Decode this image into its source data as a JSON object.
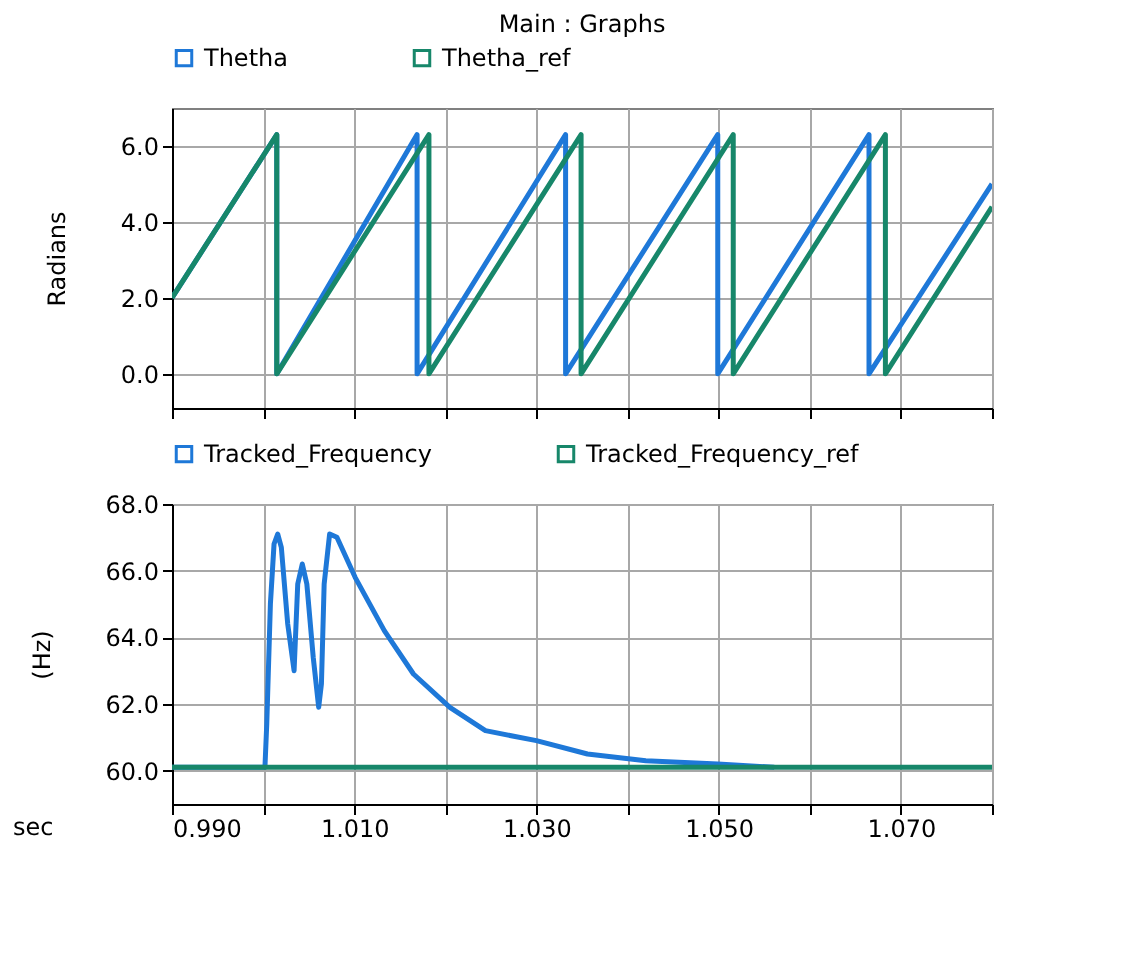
{
  "chart_data": [
    {
      "type": "line",
      "title": "Main : Graphs",
      "ylabel": "Radians",
      "xlim": [
        0.99,
        1.08
      ],
      "xticks": [
        {
          "value": 0.99,
          "label": null
        },
        {
          "value": 1.0,
          "label": null
        },
        {
          "value": 1.01,
          "label": null
        },
        {
          "value": 1.02,
          "label": null
        },
        {
          "value": 1.03,
          "label": null
        },
        {
          "value": 1.04,
          "label": null
        },
        {
          "value": 1.05,
          "label": null
        },
        {
          "value": 1.06,
          "label": null
        },
        {
          "value": 1.07,
          "label": null
        },
        {
          "value": 1.08,
          "label": null
        }
      ],
      "ylim": [
        -0.9,
        7.0
      ],
      "yticks": [
        {
          "value": 0,
          "label": "0.0"
        },
        {
          "value": 2,
          "label": "2.0"
        },
        {
          "value": 4,
          "label": "4.0"
        },
        {
          "value": 6,
          "label": "6.0"
        }
      ],
      "grid": true,
      "legend": "top",
      "tick_labels": "y",
      "series": [
        {
          "name": "Thetha",
          "color": "#1e78d8",
          "x": [
            0.99,
            1.0015,
            1.0015,
            1.0169,
            1.0169,
            1.0332,
            1.0332,
            1.0499,
            1.0499,
            1.0665,
            1.0665,
            1.08
          ],
          "values": [
            2.0,
            6.3,
            0,
            6.3,
            0,
            6.3,
            0,
            6.3,
            0,
            6.3,
            0,
            5.0
          ]
        },
        {
          "name": "Thetha_ref",
          "color": "#17876a",
          "x": [
            0.99,
            1.0015,
            1.0015,
            1.0182,
            1.0182,
            1.0349,
            1.0349,
            1.0516,
            1.0516,
            1.0683,
            1.0683,
            1.08
          ],
          "values": [
            2.0,
            6.3,
            0,
            6.3,
            0,
            6.3,
            0,
            6.3,
            0,
            6.3,
            0,
            4.4
          ]
        }
      ]
    },
    {
      "type": "line",
      "xlabel": "sec",
      "ylabel": "(Hz)",
      "xlim": [
        0.99,
        1.08
      ],
      "xticks": [
        {
          "value": 0.99,
          "label": "0.990"
        },
        {
          "value": 1.0,
          "label": null
        },
        {
          "value": 1.01,
          "label": "1.010"
        },
        {
          "value": 1.02,
          "label": null
        },
        {
          "value": 1.03,
          "label": "1.030"
        },
        {
          "value": 1.04,
          "label": null
        },
        {
          "value": 1.05,
          "label": "1.050"
        },
        {
          "value": 1.06,
          "label": null
        },
        {
          "value": 1.07,
          "label": "1.070"
        },
        {
          "value": 1.08,
          "label": null
        }
      ],
      "ylim": [
        59.0,
        68.0
      ],
      "yticks": [
        {
          "value": 60,
          "label": "60.0"
        },
        {
          "value": 62,
          "label": "62.0"
        },
        {
          "value": 64,
          "label": "64.0"
        },
        {
          "value": 66,
          "label": "66.0"
        },
        {
          "value": 68,
          "label": "68.0"
        }
      ],
      "grid": true,
      "legend": "top",
      "series": [
        {
          "name": "Tracked_Frequency",
          "color": "#1e78d8",
          "x": [
            0.99,
            1.0002,
            1.0004,
            1.0008,
            1.0012,
            1.0016,
            1.002,
            1.0027,
            1.0034,
            1.0038,
            1.0043,
            1.0048,
            1.0055,
            1.0061,
            1.0064,
            1.0067,
            1.0073,
            1.0081,
            1.0101,
            1.0133,
            1.0165,
            1.0205,
            1.0244,
            1.03,
            1.0356,
            1.042,
            1.0499,
            1.0561
          ],
          "values": [
            60.1,
            60.1,
            61.4,
            65.0,
            66.8,
            67.1,
            66.7,
            64.4,
            63.0,
            65.6,
            66.2,
            65.6,
            63.4,
            61.9,
            62.6,
            65.6,
            67.1,
            67.0,
            65.8,
            64.2,
            62.9,
            61.9,
            61.2,
            60.9,
            60.5,
            60.3,
            60.2,
            60.1
          ]
        },
        {
          "name": "Tracked_Frequency_ref",
          "color": "#17876a",
          "x": [
            0.99,
            1.08
          ],
          "values": [
            60.1,
            60.1
          ]
        }
      ]
    }
  ]
}
